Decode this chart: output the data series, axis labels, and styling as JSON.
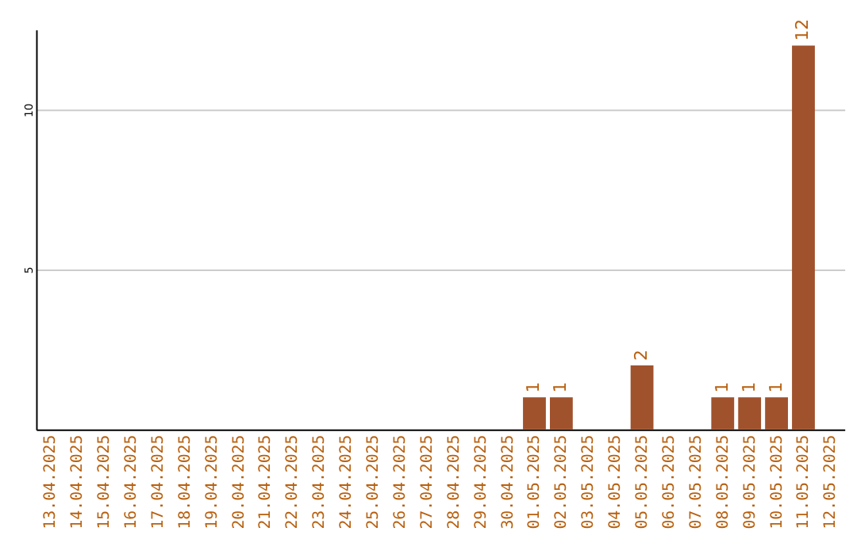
{
  "chart_data": {
    "type": "bar",
    "categories": [
      "13.04.2025",
      "14.04.2025",
      "15.04.2025",
      "16.04.2025",
      "17.04.2025",
      "18.04.2025",
      "19.04.2025",
      "20.04.2025",
      "21.04.2025",
      "22.04.2025",
      "23.04.2025",
      "24.04.2025",
      "25.04.2025",
      "26.04.2025",
      "27.04.2025",
      "28.04.2025",
      "29.04.2025",
      "30.04.2025",
      "01.05.2025",
      "02.05.2025",
      "03.05.2025",
      "04.05.2025",
      "05.05.2025",
      "06.05.2025",
      "07.05.2025",
      "08.05.2025",
      "09.05.2025",
      "10.05.2025",
      "11.05.2025",
      "12.05.2025"
    ],
    "values": [
      0,
      0,
      0,
      0,
      0,
      0,
      0,
      0,
      0,
      0,
      0,
      0,
      0,
      0,
      0,
      0,
      0,
      0,
      1,
      1,
      0,
      0,
      2,
      0,
      0,
      1,
      1,
      1,
      12,
      0
    ],
    "value_labels": [
      null,
      null,
      null,
      null,
      null,
      null,
      null,
      null,
      null,
      null,
      null,
      null,
      null,
      null,
      null,
      null,
      null,
      null,
      "1",
      "1",
      null,
      null,
      "2",
      null,
      null,
      "1",
      "1",
      "1",
      "12",
      null
    ],
    "color": "#a0522d",
    "ylim": [
      0,
      12.5
    ],
    "yticks": [
      5,
      10
    ],
    "grid": "y"
  }
}
